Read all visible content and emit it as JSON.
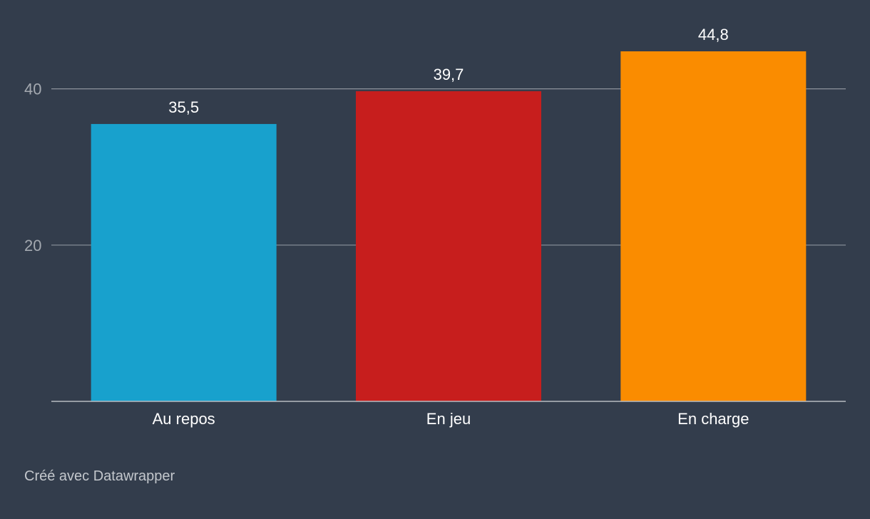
{
  "chart_data": {
    "type": "bar",
    "categories": [
      "Au repos",
      "En jeu",
      "En charge"
    ],
    "values": [
      35.5,
      39.7,
      44.8
    ],
    "value_labels": [
      "35,5",
      "39,7",
      "44,8"
    ],
    "colors": [
      "#18a1cd",
      "#c71e1d",
      "#fa8c00"
    ],
    "yticks": [
      20,
      40
    ],
    "ylim": [
      0,
      44.8
    ],
    "grid": true,
    "title": "",
    "xlabel": "",
    "ylabel": ""
  },
  "credit": "Créé avec Datawrapper"
}
